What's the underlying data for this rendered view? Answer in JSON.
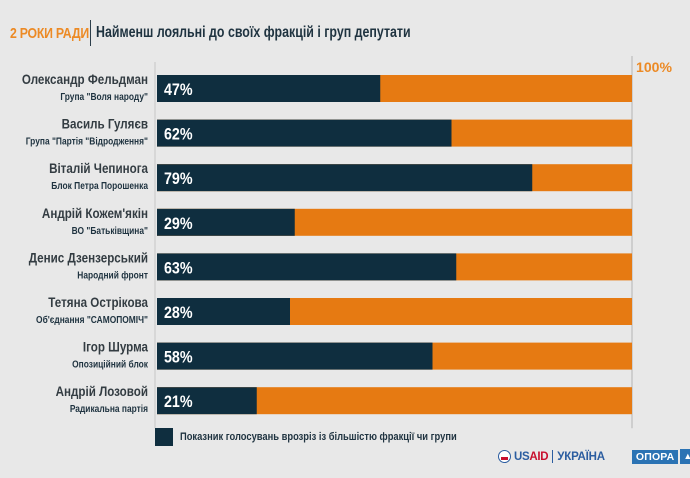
{
  "header": {
    "kicker": "2 РОКИ РАДИ",
    "title": "Найменш лояльні до своїх фракцій і груп депутати"
  },
  "colors": {
    "primary": "#0f2e3f",
    "remainder": "#e67a12",
    "accent": "#ec8a25",
    "background": "#e8e8e8"
  },
  "chart_data": {
    "type": "bar",
    "orientation": "horizontal",
    "stacked_to": 100,
    "title": "Найменш лояльні до своїх фракцій і груп депутати",
    "xlim": [
      0,
      100
    ],
    "max_label": "100%",
    "categories": [
      {
        "name": "Олександр Фельдман",
        "group": "Група \"Воля народу\""
      },
      {
        "name": "Василь Гуляєв",
        "group": "Група \"Партія \"Відродження\""
      },
      {
        "name": "Віталій Чепинога",
        "group": "Блок Петра Порошенка"
      },
      {
        "name": "Андрій Кожем'якін",
        "group": "ВО  \"Батьківщина\""
      },
      {
        "name": "Денис Дзензерський",
        "group": "Народний фронт"
      },
      {
        "name": "Тетяна Острікова",
        "group": "Об'єднання \"САМОПОМІЧ\""
      },
      {
        "name": "Ігор Шурма",
        "group": "Опозиційний блок"
      },
      {
        "name": "Андрій Лозовой",
        "group": "Радикальна партія"
      }
    ],
    "series": [
      {
        "name": "Показник голосувань врозріз із більшістю фракції чи групи",
        "values": [
          47,
          62,
          79,
          29,
          63,
          28,
          58,
          21
        ]
      }
    ],
    "value_labels": [
      "47%",
      "62%",
      "79%",
      "29%",
      "63%",
      "28%",
      "58%",
      "21%"
    ],
    "legend": {
      "label": "Показник голосувань врозріз із більшістю фракції чи групи",
      "placement": "bottom-left"
    }
  },
  "footer": {
    "usaid_prefix": "US",
    "usaid_suffix": "AID",
    "ukraine": "УКРАЇНА",
    "opora": "ОПОРА",
    "opora_icon": "▲"
  }
}
